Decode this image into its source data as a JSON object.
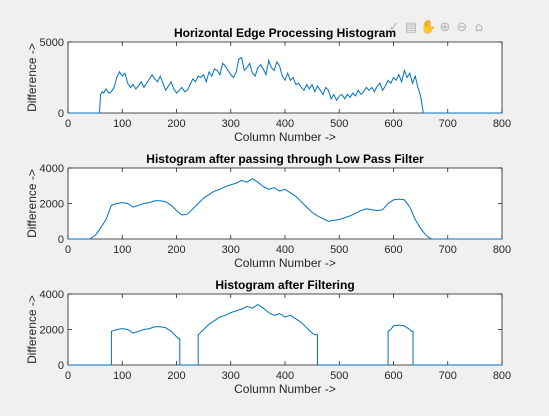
{
  "toolbar": {
    "icons": [
      "brush-icon",
      "data-cursor-icon",
      "pan-hand-icon",
      "zoom-in-icon",
      "zoom-out-icon",
      "home-icon"
    ]
  },
  "colors": {
    "line": "#0072bd",
    "axes": "#262626",
    "figure_bg": "#f0f0f0"
  },
  "chart_data": [
    {
      "type": "line",
      "title": "Horizontal Edge Processing Histogram",
      "xlabel": "Column Number ->",
      "ylabel": "Difference ->",
      "xlim": [
        0,
        800
      ],
      "ylim": [
        0,
        5000
      ],
      "xticks": [
        0,
        100,
        200,
        300,
        400,
        500,
        600,
        700,
        800
      ],
      "yticks": [
        0,
        5000
      ],
      "grid": false,
      "x": [
        0,
        58,
        60,
        63,
        66,
        70,
        75,
        80,
        85,
        90,
        95,
        100,
        105,
        110,
        115,
        120,
        125,
        130,
        135,
        140,
        145,
        150,
        155,
        160,
        165,
        170,
        175,
        180,
        185,
        190,
        195,
        200,
        205,
        210,
        215,
        220,
        225,
        230,
        235,
        240,
        245,
        250,
        255,
        260,
        265,
        270,
        275,
        280,
        285,
        290,
        295,
        300,
        305,
        310,
        315,
        320,
        325,
        330,
        335,
        340,
        345,
        350,
        355,
        360,
        365,
        370,
        375,
        380,
        385,
        390,
        395,
        400,
        405,
        410,
        415,
        420,
        425,
        430,
        435,
        440,
        445,
        450,
        455,
        460,
        465,
        470,
        475,
        480,
        485,
        490,
        495,
        500,
        505,
        510,
        515,
        520,
        525,
        530,
        535,
        540,
        545,
        550,
        555,
        560,
        565,
        570,
        575,
        580,
        585,
        590,
        595,
        600,
        605,
        610,
        615,
        620,
        625,
        630,
        635,
        640,
        645,
        650,
        655,
        800
      ],
      "values": [
        0,
        0,
        1300,
        1500,
        1400,
        1700,
        1400,
        1500,
        1800,
        2500,
        2900,
        2600,
        2800,
        2100,
        1800,
        2000,
        1700,
        1900,
        2200,
        1800,
        2100,
        2400,
        2700,
        2400,
        2200,
        2600,
        2100,
        1600,
        1900,
        2200,
        1700,
        1400,
        1600,
        1800,
        1500,
        1600,
        2000,
        2400,
        2200,
        2600,
        2500,
        2700,
        2200,
        2900,
        2600,
        3100,
        3000,
        2700,
        3500,
        3300,
        3000,
        2700,
        2500,
        2900,
        3800,
        3900,
        3000,
        3200,
        3500,
        2800,
        2600,
        3200,
        3400,
        3100,
        2700,
        3700,
        3200,
        3000,
        3600,
        3300,
        2600,
        2300,
        2800,
        2300,
        2500,
        2000,
        2100,
        1800,
        1600,
        2000,
        1700,
        2000,
        1500,
        1900,
        1600,
        1300,
        1800,
        1600,
        1000,
        1300,
        900,
        1200,
        1300,
        1000,
        1300,
        1100,
        1400,
        1200,
        1600,
        1300,
        1500,
        1800,
        1600,
        1800,
        1500,
        1900,
        2100,
        1600,
        1900,
        2300,
        2100,
        2500,
        2300,
        2700,
        2200,
        3000,
        2500,
        2800,
        2100,
        2600,
        1800,
        1200,
        0,
        0
      ]
    },
    {
      "type": "line",
      "title": "Histogram after passing through Low Pass Filter",
      "xlabel": "Column Number ->",
      "ylabel": "Difference ->",
      "xlim": [
        0,
        800
      ],
      "ylim": [
        0,
        4000
      ],
      "xticks": [
        0,
        100,
        200,
        300,
        400,
        500,
        600,
        700,
        800
      ],
      "yticks": [
        0,
        2000,
        4000
      ],
      "grid": false,
      "x": [
        0,
        40,
        50,
        60,
        70,
        80,
        90,
        100,
        110,
        120,
        130,
        140,
        150,
        160,
        170,
        180,
        190,
        200,
        210,
        220,
        230,
        240,
        250,
        260,
        270,
        280,
        290,
        300,
        310,
        320,
        330,
        340,
        350,
        360,
        370,
        380,
        390,
        400,
        410,
        420,
        430,
        440,
        450,
        460,
        470,
        480,
        490,
        500,
        510,
        520,
        530,
        540,
        550,
        560,
        570,
        580,
        590,
        600,
        610,
        620,
        630,
        640,
        650,
        660,
        670,
        800
      ],
      "values": [
        0,
        0,
        200,
        600,
        1100,
        1900,
        2000,
        2050,
        2000,
        1800,
        1900,
        2000,
        2050,
        2150,
        2150,
        2100,
        1900,
        1600,
        1350,
        1400,
        1700,
        2000,
        2300,
        2500,
        2700,
        2800,
        2950,
        3050,
        3150,
        3300,
        3200,
        3400,
        3200,
        2950,
        2800,
        2900,
        2700,
        2800,
        2600,
        2400,
        2100,
        1800,
        1500,
        1300,
        1150,
        1000,
        1050,
        1100,
        1200,
        1300,
        1450,
        1600,
        1700,
        1650,
        1600,
        1650,
        2000,
        2200,
        2250,
        2200,
        1800,
        1100,
        600,
        200,
        0,
        0
      ]
    },
    {
      "type": "line",
      "title": "Histogram after Filtering",
      "xlabel": "Column Number ->",
      "ylabel": "Difference ->",
      "xlim": [
        0,
        800
      ],
      "ylim": [
        0,
        4000
      ],
      "xticks": [
        0,
        100,
        200,
        300,
        400,
        500,
        600,
        700,
        800
      ],
      "yticks": [
        0,
        2000,
        4000
      ],
      "grid": false,
      "x": [
        0,
        80,
        80,
        90,
        100,
        110,
        120,
        130,
        140,
        150,
        160,
        170,
        180,
        190,
        200,
        203,
        206,
        206,
        240,
        240,
        250,
        260,
        270,
        280,
        290,
        300,
        310,
        320,
        330,
        340,
        350,
        360,
        370,
        380,
        390,
        400,
        410,
        420,
        430,
        440,
        450,
        455,
        460,
        460,
        590,
        590,
        595,
        600,
        610,
        620,
        630,
        633,
        636,
        636,
        800
      ],
      "values": [
        0,
        0,
        1900,
        2000,
        2050,
        2000,
        1800,
        1900,
        2000,
        2050,
        2150,
        2150,
        2100,
        1900,
        1600,
        1500,
        1500,
        0,
        0,
        1700,
        2000,
        2300,
        2500,
        2700,
        2800,
        2950,
        3050,
        3150,
        3300,
        3200,
        3400,
        3200,
        2950,
        2800,
        2900,
        2700,
        2800,
        2600,
        2400,
        2100,
        1800,
        1700,
        1700,
        0,
        0,
        1900,
        2000,
        2200,
        2250,
        2200,
        2000,
        1900,
        1900,
        0,
        0
      ]
    }
  ]
}
